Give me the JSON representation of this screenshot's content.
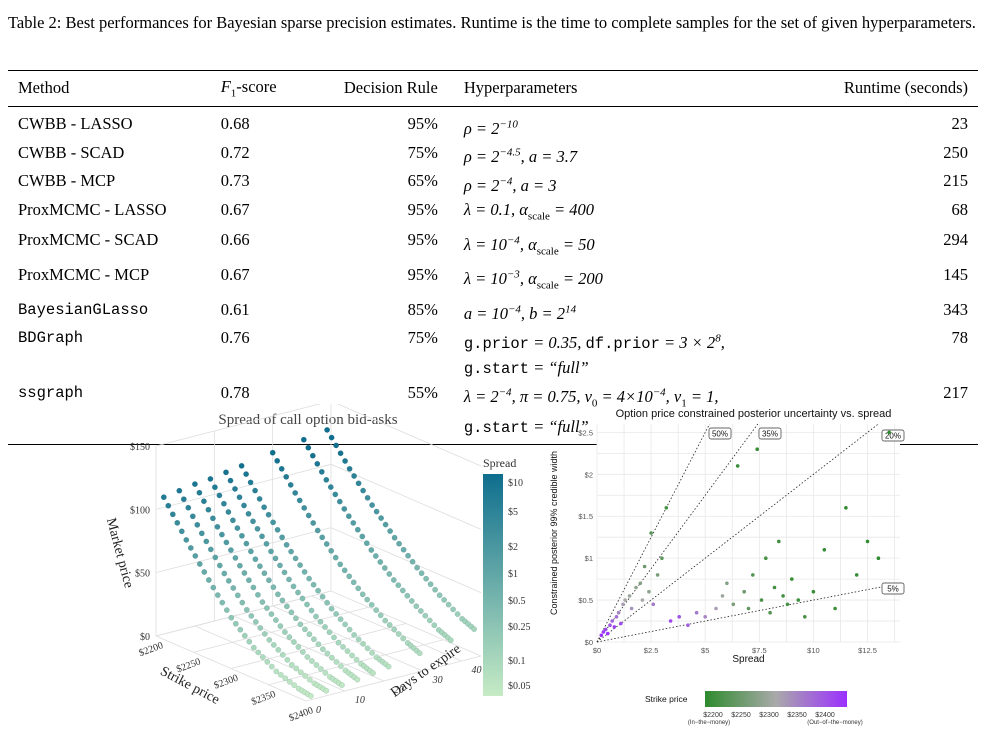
{
  "caption": "Table 2: Best performances for Bayesian sparse precision estimates. Runtime is the time to complete samples for the set of given hyperparameters.",
  "table": {
    "headers": {
      "method": "Method",
      "f1": "F1-score",
      "decision": "Decision Rule",
      "hyper": "Hyperparameters",
      "runtime": "Runtime (seconds)"
    },
    "rows": [
      {
        "method": "CWBB - LASSO",
        "mono": false,
        "f1": "0.68",
        "decision": "95%",
        "hyper": "ρ = 2^−10",
        "hyper2": "",
        "runtime": "23"
      },
      {
        "method": "CWBB - SCAD",
        "mono": false,
        "f1": "0.72",
        "decision": "75%",
        "hyper": "ρ = 2^−4.5, a = 3.7",
        "hyper2": "",
        "runtime": "250"
      },
      {
        "method": "CWBB - MCP",
        "mono": false,
        "f1": "0.73",
        "decision": "65%",
        "hyper": "ρ = 2^−4, a = 3",
        "hyper2": "",
        "runtime": "215"
      },
      {
        "method": "ProxMCMC - LASSO",
        "mono": false,
        "f1": "0.67",
        "decision": "95%",
        "hyper": "λ = 0.1, α_scale = 400",
        "hyper2": "",
        "runtime": "68"
      },
      {
        "method": "ProxMCMC - SCAD",
        "mono": false,
        "f1": "0.66",
        "decision": "95%",
        "hyper": "λ = 10^−4, α_scale = 50",
        "hyper2": "",
        "runtime": "294"
      },
      {
        "method": "ProxMCMC - MCP",
        "mono": false,
        "f1": "0.67",
        "decision": "95%",
        "hyper": "λ = 10^−3, α_scale = 200",
        "hyper2": "",
        "runtime": "145"
      },
      {
        "method": "BayesianGLasso",
        "mono": true,
        "f1": "0.61",
        "decision": "85%",
        "hyper": "a = 10^−4, b = 2^14",
        "hyper2": "",
        "runtime": "343"
      },
      {
        "method": "BDGraph",
        "mono": true,
        "f1": "0.76",
        "decision": "75%",
        "hyper": "g.prior = 0.35, df.prior = 3 × 2^8,",
        "hyper2": "g.start = “full”",
        "runtime": "78"
      },
      {
        "method": "ssgraph",
        "mono": true,
        "f1": "0.78",
        "decision": "55%",
        "hyper": "λ = 2^−4, π = 0.75, v_0 = 4×10^−4, v_1 = 1,",
        "hyper2": "g.start = “full”",
        "runtime": "217"
      }
    ]
  },
  "chart_data": [
    {
      "type": "scatter",
      "title": "Spread of call option bid-asks",
      "xlabel": "Strike price",
      "ylabel": "Market price",
      "zlabel": "Days to expire",
      "x_ticks": [
        "$2200",
        "$2250",
        "$2300",
        "$2350",
        "$2400"
      ],
      "y_ticks": [
        "$0",
        "$50",
        "$100",
        "$150"
      ],
      "z_ticks": [
        "0",
        "10",
        "20",
        "30",
        "40"
      ],
      "legend": {
        "title": "Spread",
        "ticks": [
          "$10",
          "$5",
          "$2",
          "$1",
          "$0.5",
          "$0.25",
          "$0.1",
          "$0.05"
        ],
        "color_high": "#0e6e8e",
        "color_low": "#c6ebc5"
      },
      "series": [
        {
          "days": 2,
          "points": [
            [
              2200,
              108
            ],
            [
              2230,
              82
            ],
            [
              2260,
              58
            ],
            [
              2290,
              36
            ],
            [
              2320,
              20
            ],
            [
              2350,
              9
            ],
            [
              2380,
              3
            ],
            [
              2400,
              1
            ]
          ]
        },
        {
          "days": 6,
          "points": [
            [
              2200,
              110
            ],
            [
              2230,
              84
            ],
            [
              2260,
              60
            ],
            [
              2290,
              39
            ],
            [
              2320,
              23
            ],
            [
              2350,
              11
            ],
            [
              2380,
              4
            ],
            [
              2400,
              2
            ]
          ]
        },
        {
          "days": 10,
          "points": [
            [
              2200,
              112
            ],
            [
              2230,
              86
            ],
            [
              2260,
              63
            ],
            [
              2290,
              42
            ],
            [
              2320,
              26
            ],
            [
              2350,
              14
            ],
            [
              2380,
              6
            ],
            [
              2400,
              3
            ]
          ]
        },
        {
          "days": 14,
          "points": [
            [
              2200,
              113
            ],
            [
              2230,
              88
            ],
            [
              2260,
              65
            ],
            [
              2290,
              45
            ],
            [
              2320,
              29
            ],
            [
              2350,
              17
            ],
            [
              2380,
              8
            ],
            [
              2400,
              4
            ]
          ]
        },
        {
          "days": 18,
          "points": [
            [
              2200,
              115
            ],
            [
              2230,
              90
            ],
            [
              2260,
              68
            ],
            [
              2290,
              48
            ],
            [
              2320,
              32
            ],
            [
              2350,
              19
            ],
            [
              2380,
              10
            ],
            [
              2400,
              6
            ]
          ]
        },
        {
          "days": 22,
          "points": [
            [
              2200,
              117
            ],
            [
              2230,
              92
            ],
            [
              2260,
              70
            ],
            [
              2290,
              51
            ],
            [
              2320,
              35
            ],
            [
              2350,
              22
            ],
            [
              2380,
              12
            ],
            [
              2400,
              8
            ]
          ]
        },
        {
          "days": 30,
          "points": [
            [
              2200,
              121
            ],
            [
              2230,
              97
            ],
            [
              2260,
              75
            ],
            [
              2290,
              56
            ],
            [
              2320,
              40
            ],
            [
              2350,
              27
            ],
            [
              2380,
              17
            ],
            [
              2400,
              12
            ]
          ]
        },
        {
          "days": 38,
          "points": [
            [
              2200,
              125
            ],
            [
              2230,
              101
            ],
            [
              2260,
              80
            ],
            [
              2290,
              61
            ],
            [
              2320,
              45
            ],
            [
              2350,
              32
            ],
            [
              2380,
              21
            ],
            [
              2400,
              16
            ]
          ]
        },
        {
          "days": 44,
          "points": [
            [
              2200,
              128
            ],
            [
              2230,
              105
            ],
            [
              2260,
              84
            ],
            [
              2290,
              66
            ],
            [
              2320,
              50
            ],
            [
              2350,
              36
            ],
            [
              2380,
              25
            ],
            [
              2400,
              20
            ]
          ]
        }
      ]
    },
    {
      "type": "scatter",
      "title": "Option price constrained posterior uncertainty vs. spread",
      "xlabel": "Spread",
      "ylabel": "Constrained posterior 99% credible width",
      "x_ticks": [
        "$0",
        "$2.5",
        "$5",
        "$7.5",
        "$10",
        "$12.5"
      ],
      "y_ticks": [
        "$0",
        "$0.5",
        "$1",
        "$1.5",
        "$2",
        "$2.5"
      ],
      "xlim": [
        0,
        14
      ],
      "ylim": [
        0,
        2.6
      ],
      "reference_lines": [
        {
          "label": "50%",
          "slope": 0.5
        },
        {
          "label": "35%",
          "slope": 0.35
        },
        {
          "label": "20%",
          "slope": 0.2
        },
        {
          "label": "5%",
          "slope": 0.05
        }
      ],
      "legend": {
        "title": "Strike price",
        "ticks": [
          "$2200\n(In−the−money)",
          "$2250",
          "$2300",
          "$2350",
          "$2400\n(Out−of−the−money)"
        ],
        "color_low": "#2e8b2e",
        "color_mid": "#a9a9a9",
        "color_high": "#9b30ff"
      },
      "points": [
        {
          "x": 0.2,
          "y": 0.08,
          "strike": 2400
        },
        {
          "x": 0.3,
          "y": 0.12,
          "strike": 2390
        },
        {
          "x": 0.4,
          "y": 0.15,
          "strike": 2380
        },
        {
          "x": 0.5,
          "y": 0.1,
          "strike": 2395
        },
        {
          "x": 0.6,
          "y": 0.2,
          "strike": 2370
        },
        {
          "x": 0.7,
          "y": 0.25,
          "strike": 2360
        },
        {
          "x": 0.8,
          "y": 0.18,
          "strike": 2385
        },
        {
          "x": 0.9,
          "y": 0.3,
          "strike": 2350
        },
        {
          "x": 1.0,
          "y": 0.35,
          "strike": 2330
        },
        {
          "x": 1.1,
          "y": 0.22,
          "strike": 2375
        },
        {
          "x": 1.2,
          "y": 0.45,
          "strike": 2310
        },
        {
          "x": 1.3,
          "y": 0.5,
          "strike": 2300
        },
        {
          "x": 1.5,
          "y": 0.55,
          "strike": 2290
        },
        {
          "x": 1.6,
          "y": 0.4,
          "strike": 2320
        },
        {
          "x": 1.8,
          "y": 0.65,
          "strike": 2280
        },
        {
          "x": 2.0,
          "y": 0.7,
          "strike": 2270
        },
        {
          "x": 2.1,
          "y": 0.5,
          "strike": 2300
        },
        {
          "x": 2.2,
          "y": 0.9,
          "strike": 2250
        },
        {
          "x": 2.4,
          "y": 0.6,
          "strike": 2280
        },
        {
          "x": 2.5,
          "y": 1.3,
          "strike": 2230
        },
        {
          "x": 2.6,
          "y": 0.45,
          "strike": 2340
        },
        {
          "x": 2.8,
          "y": 0.8,
          "strike": 2260
        },
        {
          "x": 3.0,
          "y": 1.0,
          "strike": 2240
        },
        {
          "x": 3.2,
          "y": 1.6,
          "strike": 2220
        },
        {
          "x": 3.4,
          "y": 0.25,
          "strike": 2380
        },
        {
          "x": 3.8,
          "y": 0.3,
          "strike": 2370
        },
        {
          "x": 4.2,
          "y": 0.2,
          "strike": 2360
        },
        {
          "x": 4.6,
          "y": 0.35,
          "strike": 2340
        },
        {
          "x": 5.0,
          "y": 0.3,
          "strike": 2330
        },
        {
          "x": 5.5,
          "y": 0.4,
          "strike": 2310
        },
        {
          "x": 5.8,
          "y": 0.55,
          "strike": 2290
        },
        {
          "x": 6.0,
          "y": 0.7,
          "strike": 2270
        },
        {
          "x": 6.3,
          "y": 0.45,
          "strike": 2260
        },
        {
          "x": 6.5,
          "y": 2.1,
          "strike": 2210
        },
        {
          "x": 6.8,
          "y": 0.6,
          "strike": 2250
        },
        {
          "x": 7.0,
          "y": 0.4,
          "strike": 2240
        },
        {
          "x": 7.2,
          "y": 0.8,
          "strike": 2230
        },
        {
          "x": 7.4,
          "y": 2.3,
          "strike": 2205
        },
        {
          "x": 7.6,
          "y": 0.5,
          "strike": 2225
        },
        {
          "x": 7.8,
          "y": 1.0,
          "strike": 2220
        },
        {
          "x": 8.0,
          "y": 0.35,
          "strike": 2230
        },
        {
          "x": 8.2,
          "y": 0.65,
          "strike": 2215
        },
        {
          "x": 8.4,
          "y": 1.2,
          "strike": 2212
        },
        {
          "x": 8.6,
          "y": 0.55,
          "strike": 2218
        },
        {
          "x": 8.8,
          "y": 0.45,
          "strike": 2222
        },
        {
          "x": 9.0,
          "y": 0.75,
          "strike": 2210
        },
        {
          "x": 9.3,
          "y": 0.5,
          "strike": 2215
        },
        {
          "x": 9.6,
          "y": 0.3,
          "strike": 2220
        },
        {
          "x": 10.0,
          "y": 0.6,
          "strike": 2210
        },
        {
          "x": 10.5,
          "y": 1.1,
          "strike": 2205
        },
        {
          "x": 11.0,
          "y": 0.4,
          "strike": 2212
        },
        {
          "x": 11.5,
          "y": 1.6,
          "strike": 2203
        },
        {
          "x": 12.0,
          "y": 0.8,
          "strike": 2208
        },
        {
          "x": 12.5,
          "y": 1.2,
          "strike": 2204
        },
        {
          "x": 13.5,
          "y": 2.5,
          "strike": 2200
        },
        {
          "x": 13.0,
          "y": 1.0,
          "strike": 2201
        }
      ]
    }
  ]
}
